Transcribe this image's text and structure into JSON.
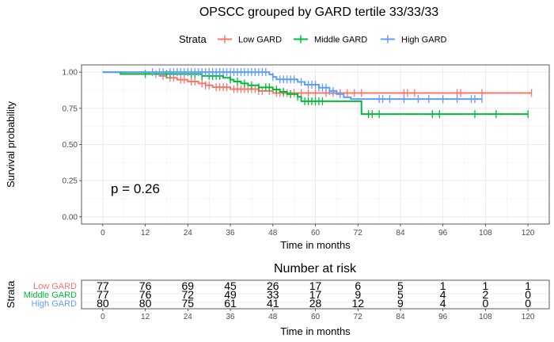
{
  "title": "OPSCC grouped by GARD tertile 33/33/33",
  "legend": {
    "title": "Strata",
    "items": [
      {
        "label": "Low GARD",
        "color": "#F8766D"
      },
      {
        "label": "Middle GARD",
        "color": "#00BA38"
      },
      {
        "label": "High GARD",
        "color": "#619CFF"
      }
    ]
  },
  "pvalue": "p = 0.26",
  "risk_table": {
    "title": "Number at risk",
    "ylabel": "Strata",
    "xlabel": "Time in months"
  },
  "chart_data": {
    "type": "line",
    "title": "OPSCC grouped by GARD tertile 33/33/33",
    "xlabel": "Time in months",
    "ylabel": "Survival probability",
    "xlim": [
      -6,
      126
    ],
    "ylim": [
      -0.05,
      1.05
    ],
    "xticks": [
      0,
      12,
      24,
      36,
      48,
      60,
      72,
      84,
      96,
      108,
      120
    ],
    "yticks": [
      0.0,
      0.25,
      0.5,
      0.75,
      1.0
    ],
    "ytick_labels": [
      "0.00",
      "0.25",
      "0.50",
      "0.75",
      "1.00"
    ],
    "grid": true,
    "legend_position": "top",
    "series": [
      {
        "name": "Low GARD",
        "color": "#F8766D",
        "steps": [
          [
            0,
            1.0
          ],
          [
            13,
            0.987
          ],
          [
            16,
            0.974
          ],
          [
            18,
            0.961
          ],
          [
            21,
            0.948
          ],
          [
            24,
            0.935
          ],
          [
            27,
            0.922
          ],
          [
            29,
            0.909
          ],
          [
            31,
            0.896
          ],
          [
            36,
            0.883
          ],
          [
            44,
            0.87
          ],
          [
            48,
            0.856
          ],
          [
            66,
            0.856
          ],
          [
            121,
            0.856
          ]
        ],
        "censor_times": [
          15,
          17,
          19,
          20,
          22,
          23,
          25,
          26,
          28,
          29,
          30,
          32,
          33,
          34,
          35,
          37,
          38,
          39,
          40,
          41,
          42,
          43,
          44,
          45,
          47,
          49,
          50,
          51,
          52,
          54,
          56,
          58,
          60,
          63,
          65,
          67,
          69,
          71,
          73,
          85,
          86,
          88,
          100,
          101,
          107,
          121
        ],
        "risk": [
          77,
          76,
          69,
          45,
          26,
          17,
          6,
          5,
          1,
          1,
          1
        ]
      },
      {
        "name": "Middle GARD",
        "color": "#00BA38",
        "steps": [
          [
            0,
            1.0
          ],
          [
            5,
            0.987
          ],
          [
            28,
            0.974
          ],
          [
            34,
            0.961
          ],
          [
            36,
            0.948
          ],
          [
            37,
            0.935
          ],
          [
            39,
            0.922
          ],
          [
            41,
            0.909
          ],
          [
            44,
            0.895
          ],
          [
            48,
            0.88
          ],
          [
            50,
            0.864
          ],
          [
            52,
            0.848
          ],
          [
            55,
            0.83
          ],
          [
            56,
            0.799
          ],
          [
            63,
            0.799
          ],
          [
            71,
            0.799
          ],
          [
            73,
            0.71
          ],
          [
            120,
            0.71
          ]
        ],
        "censor_times": [
          12,
          18,
          19,
          25,
          26,
          28,
          30,
          31,
          32,
          33,
          36,
          38,
          40,
          42,
          44,
          46,
          47,
          49,
          51,
          53,
          55,
          57,
          58,
          59,
          60,
          61,
          62,
          75,
          76,
          78,
          93,
          95,
          105,
          111,
          120
        ],
        "risk": [
          77,
          76,
          72,
          49,
          33,
          17,
          9,
          5,
          4,
          2,
          0
        ]
      },
      {
        "name": "High GARD",
        "color": "#619CFF",
        "steps": [
          [
            0,
            1.0
          ],
          [
            47,
            0.984
          ],
          [
            48,
            0.967
          ],
          [
            49,
            0.95
          ],
          [
            55,
            0.932
          ],
          [
            57,
            0.913
          ],
          [
            61,
            0.893
          ],
          [
            64,
            0.87
          ],
          [
            66,
            0.848
          ],
          [
            68,
            0.826
          ],
          [
            70,
            0.814
          ],
          [
            107,
            0.814
          ]
        ],
        "censor_times": [
          14,
          16,
          17,
          19,
          20,
          21,
          22,
          23,
          24,
          25,
          26,
          27,
          28,
          29,
          30,
          31,
          32,
          33,
          34,
          35,
          36,
          37,
          38,
          39,
          40,
          41,
          42,
          43,
          44,
          45,
          46,
          48,
          50,
          51,
          52,
          53,
          54,
          56,
          58,
          59,
          60,
          61,
          62,
          63,
          64,
          65,
          67,
          78,
          79,
          81,
          85,
          89,
          92,
          96,
          100,
          104,
          105,
          107
        ],
        "risk": [
          80,
          80,
          75,
          61,
          41,
          28,
          12,
          9,
          4,
          0,
          0
        ]
      }
    ]
  }
}
